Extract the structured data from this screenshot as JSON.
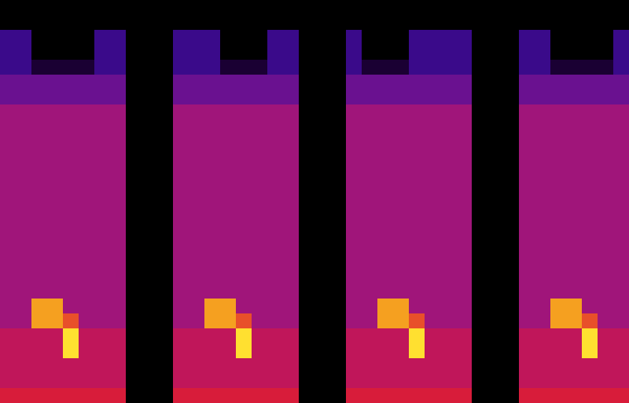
{
  "chart_data": {
    "type": "heatmap",
    "xlim": [
      0,
      40
    ],
    "ylim": [
      0,
      27
    ],
    "tick_labels": false,
    "colors": [
      "#000000",
      "#1a0033",
      "#3a0a8a",
      "#6a1190",
      "#a0157a",
      "#c0165a",
      "#d81c3a",
      "#e8502a",
      "#f5a020",
      "#ffe030"
    ],
    "cells": [
      [
        0,
        0,
        0,
        0,
        0,
        0,
        0,
        0,
        0,
        0,
        0,
        0,
        0,
        0,
        0,
        0,
        0,
        0,
        0,
        0,
        0,
        0,
        0,
        0,
        0,
        0,
        0,
        0,
        0,
        0,
        0,
        0,
        0,
        0,
        0,
        0,
        0,
        0,
        0,
        0
      ],
      [
        0,
        0,
        0,
        0,
        0,
        0,
        0,
        0,
        0,
        0,
        0,
        0,
        0,
        0,
        0,
        0,
        0,
        0,
        0,
        0,
        0,
        0,
        0,
        0,
        0,
        0,
        0,
        0,
        0,
        0,
        0,
        0,
        0,
        0,
        0,
        0,
        0,
        0,
        0,
        0
      ],
      [
        2,
        2,
        0,
        0,
        0,
        0,
        2,
        2,
        0,
        0,
        0,
        2,
        2,
        2,
        0,
        0,
        0,
        2,
        2,
        0,
        0,
        0,
        2,
        0,
        0,
        0,
        2,
        2,
        2,
        2,
        0,
        0,
        0,
        2,
        2,
        0,
        0,
        0,
        0,
        2
      ],
      [
        2,
        2,
        0,
        0,
        0,
        0,
        2,
        2,
        0,
        0,
        0,
        2,
        2,
        2,
        0,
        0,
        0,
        2,
        2,
        0,
        0,
        0,
        2,
        0,
        0,
        0,
        2,
        2,
        2,
        2,
        0,
        0,
        0,
        2,
        2,
        0,
        0,
        0,
        0,
        2
      ],
      [
        2,
        2,
        1,
        1,
        1,
        1,
        2,
        2,
        0,
        0,
        0,
        2,
        2,
        2,
        1,
        1,
        1,
        2,
        2,
        0,
        0,
        0,
        2,
        1,
        1,
        1,
        2,
        2,
        2,
        2,
        0,
        0,
        0,
        2,
        2,
        1,
        1,
        1,
        1,
        2
      ],
      [
        3,
        3,
        3,
        3,
        3,
        3,
        3,
        3,
        0,
        0,
        0,
        3,
        3,
        3,
        3,
        3,
        3,
        3,
        3,
        0,
        0,
        0,
        3,
        3,
        3,
        3,
        3,
        3,
        3,
        3,
        0,
        0,
        0,
        3,
        3,
        3,
        3,
        3,
        3,
        3
      ],
      [
        3,
        3,
        3,
        3,
        3,
        3,
        3,
        3,
        0,
        0,
        0,
        3,
        3,
        3,
        3,
        3,
        3,
        3,
        3,
        0,
        0,
        0,
        3,
        3,
        3,
        3,
        3,
        3,
        3,
        3,
        0,
        0,
        0,
        3,
        3,
        3,
        3,
        3,
        3,
        3
      ],
      [
        4,
        4,
        4,
        4,
        4,
        4,
        4,
        4,
        0,
        0,
        0,
        4,
        4,
        4,
        4,
        4,
        4,
        4,
        4,
        0,
        0,
        0,
        4,
        4,
        4,
        4,
        4,
        4,
        4,
        4,
        0,
        0,
        0,
        4,
        4,
        4,
        4,
        4,
        4,
        4
      ],
      [
        4,
        4,
        4,
        4,
        4,
        4,
        4,
        4,
        0,
        0,
        0,
        4,
        4,
        4,
        4,
        4,
        4,
        4,
        4,
        0,
        0,
        0,
        4,
        4,
        4,
        4,
        4,
        4,
        4,
        4,
        0,
        0,
        0,
        4,
        4,
        4,
        4,
        4,
        4,
        4
      ],
      [
        4,
        4,
        4,
        4,
        4,
        4,
        4,
        4,
        0,
        0,
        0,
        4,
        4,
        4,
        4,
        4,
        4,
        4,
        4,
        0,
        0,
        0,
        4,
        4,
        4,
        4,
        4,
        4,
        4,
        4,
        0,
        0,
        0,
        4,
        4,
        4,
        4,
        4,
        4,
        4
      ],
      [
        4,
        4,
        4,
        4,
        4,
        4,
        4,
        4,
        0,
        0,
        0,
        4,
        4,
        4,
        4,
        4,
        4,
        4,
        4,
        0,
        0,
        0,
        4,
        4,
        4,
        4,
        4,
        4,
        4,
        4,
        0,
        0,
        0,
        4,
        4,
        4,
        4,
        4,
        4,
        4
      ],
      [
        4,
        4,
        4,
        4,
        4,
        4,
        4,
        4,
        0,
        0,
        0,
        4,
        4,
        4,
        4,
        4,
        4,
        4,
        4,
        0,
        0,
        0,
        4,
        4,
        4,
        4,
        4,
        4,
        4,
        4,
        0,
        0,
        0,
        4,
        4,
        4,
        4,
        4,
        4,
        4
      ],
      [
        4,
        4,
        4,
        4,
        4,
        4,
        4,
        4,
        0,
        0,
        0,
        4,
        4,
        4,
        4,
        4,
        4,
        4,
        4,
        0,
        0,
        0,
        4,
        4,
        4,
        4,
        4,
        4,
        4,
        4,
        0,
        0,
        0,
        4,
        4,
        4,
        4,
        4,
        4,
        4
      ],
      [
        4,
        4,
        4,
        4,
        4,
        4,
        4,
        4,
        0,
        0,
        0,
        4,
        4,
        4,
        4,
        4,
        4,
        4,
        4,
        0,
        0,
        0,
        4,
        4,
        4,
        4,
        4,
        4,
        4,
        4,
        0,
        0,
        0,
        4,
        4,
        4,
        4,
        4,
        4,
        4
      ],
      [
        4,
        4,
        4,
        4,
        4,
        4,
        4,
        4,
        0,
        0,
        0,
        4,
        4,
        4,
        4,
        4,
        4,
        4,
        4,
        0,
        0,
        0,
        4,
        4,
        4,
        4,
        4,
        4,
        4,
        4,
        0,
        0,
        0,
        4,
        4,
        4,
        4,
        4,
        4,
        4
      ],
      [
        4,
        4,
        4,
        4,
        4,
        4,
        4,
        4,
        0,
        0,
        0,
        4,
        4,
        4,
        4,
        4,
        4,
        4,
        4,
        0,
        0,
        0,
        4,
        4,
        4,
        4,
        4,
        4,
        4,
        4,
        0,
        0,
        0,
        4,
        4,
        4,
        4,
        4,
        4,
        4
      ],
      [
        4,
        4,
        4,
        4,
        4,
        4,
        4,
        4,
        0,
        0,
        0,
        4,
        4,
        4,
        4,
        4,
        4,
        4,
        4,
        0,
        0,
        0,
        4,
        4,
        4,
        4,
        4,
        4,
        4,
        4,
        0,
        0,
        0,
        4,
        4,
        4,
        4,
        4,
        4,
        4
      ],
      [
        4,
        4,
        4,
        4,
        4,
        4,
        4,
        4,
        0,
        0,
        0,
        4,
        4,
        4,
        4,
        4,
        4,
        4,
        4,
        0,
        0,
        0,
        4,
        4,
        4,
        4,
        4,
        4,
        4,
        4,
        0,
        0,
        0,
        4,
        4,
        4,
        4,
        4,
        4,
        4
      ],
      [
        4,
        4,
        4,
        4,
        4,
        4,
        4,
        4,
        0,
        0,
        0,
        4,
        4,
        4,
        4,
        4,
        4,
        4,
        4,
        0,
        0,
        0,
        4,
        4,
        4,
        4,
        4,
        4,
        4,
        4,
        0,
        0,
        0,
        4,
        4,
        4,
        4,
        4,
        4,
        4
      ],
      [
        4,
        4,
        4,
        4,
        4,
        4,
        4,
        4,
        0,
        0,
        0,
        4,
        4,
        4,
        4,
        4,
        4,
        4,
        4,
        0,
        0,
        0,
        4,
        4,
        4,
        4,
        4,
        4,
        4,
        4,
        0,
        0,
        0,
        4,
        4,
        4,
        4,
        4,
        4,
        4
      ],
      [
        4,
        4,
        8,
        8,
        4,
        4,
        4,
        4,
        0,
        0,
        0,
        4,
        4,
        8,
        8,
        4,
        4,
        4,
        4,
        0,
        0,
        0,
        4,
        4,
        8,
        8,
        4,
        4,
        4,
        4,
        0,
        0,
        0,
        4,
        4,
        8,
        8,
        4,
        4,
        4
      ],
      [
        4,
        4,
        8,
        8,
        7,
        4,
        4,
        4,
        0,
        0,
        0,
        4,
        4,
        8,
        8,
        7,
        4,
        4,
        4,
        0,
        0,
        0,
        4,
        4,
        8,
        8,
        7,
        4,
        4,
        4,
        0,
        0,
        0,
        4,
        4,
        8,
        8,
        7,
        4,
        4
      ],
      [
        5,
        5,
        5,
        5,
        9,
        5,
        5,
        5,
        0,
        0,
        0,
        5,
        5,
        5,
        5,
        9,
        5,
        5,
        5,
        0,
        0,
        0,
        5,
        5,
        5,
        5,
        9,
        5,
        5,
        5,
        0,
        0,
        0,
        5,
        5,
        5,
        5,
        9,
        5,
        5
      ],
      [
        5,
        5,
        5,
        5,
        9,
        5,
        5,
        5,
        0,
        0,
        0,
        5,
        5,
        5,
        5,
        9,
        5,
        5,
        5,
        0,
        0,
        0,
        5,
        5,
        5,
        5,
        9,
        5,
        5,
        5,
        0,
        0,
        0,
        5,
        5,
        5,
        5,
        9,
        5,
        5
      ],
      [
        5,
        5,
        5,
        5,
        5,
        5,
        5,
        5,
        0,
        0,
        0,
        5,
        5,
        5,
        5,
        5,
        5,
        5,
        5,
        0,
        0,
        0,
        5,
        5,
        5,
        5,
        5,
        5,
        5,
        5,
        0,
        0,
        0,
        5,
        5,
        5,
        5,
        5,
        5,
        5
      ],
      [
        5,
        5,
        5,
        5,
        5,
        5,
        5,
        5,
        0,
        0,
        0,
        5,
        5,
        5,
        5,
        5,
        5,
        5,
        5,
        0,
        0,
        0,
        5,
        5,
        5,
        5,
        5,
        5,
        5,
        5,
        0,
        0,
        0,
        5,
        5,
        5,
        5,
        5,
        5,
        5
      ],
      [
        6,
        6,
        6,
        6,
        6,
        6,
        6,
        6,
        0,
        0,
        0,
        6,
        6,
        6,
        6,
        6,
        6,
        6,
        6,
        0,
        0,
        0,
        6,
        6,
        6,
        6,
        6,
        6,
        6,
        6,
        0,
        0,
        0,
        6,
        6,
        6,
        6,
        6,
        6,
        6
      ]
    ]
  }
}
